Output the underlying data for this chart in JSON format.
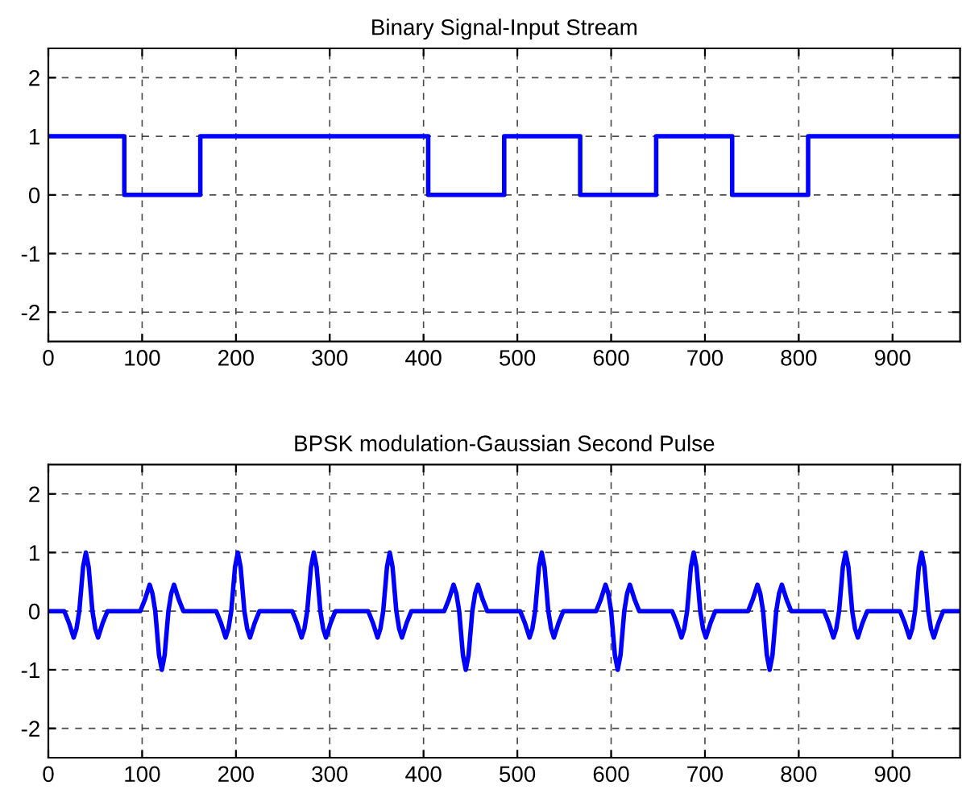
{
  "chart_data": [
    {
      "type": "step",
      "title": "Binary Signal-Input Stream",
      "x": [
        0,
        81,
        162,
        243,
        324,
        405,
        486,
        567,
        648,
        729,
        810,
        891,
        972
      ],
      "series": [
        {
          "color": "#0000ff",
          "values": [
            1,
            0,
            1,
            1,
            1,
            0,
            1,
            0,
            1,
            0,
            1,
            1,
            1
          ]
        }
      ],
      "xlim": [
        0,
        972
      ],
      "ylim": [
        -2.5,
        2.5
      ],
      "xticks": [
        0,
        100,
        200,
        300,
        400,
        500,
        600,
        700,
        800,
        900
      ],
      "yticks": [
        -2,
        -1,
        0,
        1,
        2
      ],
      "grid": true
    },
    {
      "type": "line",
      "title": "BPSK modulation-Gaussian Second Pulse",
      "x": [
        0,
        17,
        22,
        27,
        30,
        33,
        37,
        40,
        43,
        47,
        50,
        53,
        58,
        63,
        98,
        103,
        108,
        111,
        114,
        118,
        121,
        124,
        128,
        131,
        134,
        139,
        144,
        179,
        184,
        189,
        192,
        195,
        199,
        202,
        205,
        209,
        212,
        215,
        220,
        225,
        260,
        265,
        270,
        273,
        276,
        280,
        283,
        286,
        290,
        293,
        296,
        301,
        306,
        341,
        346,
        351,
        354,
        357,
        361,
        364,
        367,
        371,
        374,
        377,
        382,
        387,
        422,
        427,
        432,
        435,
        438,
        442,
        445,
        448,
        452,
        455,
        458,
        463,
        468,
        503,
        508,
        513,
        516,
        519,
        523,
        526,
        529,
        533,
        536,
        539,
        544,
        549,
        584,
        589,
        594,
        597,
        600,
        604,
        607,
        610,
        614,
        617,
        620,
        625,
        630,
        665,
        670,
        675,
        678,
        681,
        685,
        688,
        691,
        695,
        698,
        701,
        706,
        711,
        746,
        751,
        756,
        759,
        762,
        766,
        769,
        772,
        776,
        779,
        782,
        787,
        792,
        827,
        832,
        837,
        840,
        843,
        847,
        850,
        853,
        857,
        860,
        863,
        868,
        873,
        908,
        913,
        918,
        921,
        924,
        928,
        931,
        934,
        938,
        941,
        944,
        949,
        954,
        972
      ],
      "series": [
        {
          "color": "#0000ff",
          "values": [
            0,
            0,
            -0.2,
            -0.45,
            -0.3,
            0,
            0.75,
            1,
            0.75,
            0,
            -0.3,
            -0.45,
            -0.2,
            0,
            0,
            0.2,
            0.45,
            0.3,
            0,
            -0.75,
            -1,
            -0.75,
            0,
            0.3,
            0.45,
            0.2,
            0,
            0,
            -0.2,
            -0.45,
            -0.3,
            0,
            0.75,
            1,
            0.75,
            0,
            -0.3,
            -0.45,
            -0.2,
            0,
            0,
            -0.2,
            -0.45,
            -0.3,
            0,
            0.75,
            1,
            0.75,
            0,
            -0.3,
            -0.45,
            -0.2,
            0,
            0,
            -0.2,
            -0.45,
            -0.3,
            0,
            0.75,
            1,
            0.75,
            0,
            -0.3,
            -0.45,
            -0.2,
            0,
            0,
            0.2,
            0.45,
            0.3,
            0,
            -0.75,
            -1,
            -0.75,
            0,
            0.3,
            0.45,
            0.2,
            0,
            0,
            -0.2,
            -0.45,
            -0.3,
            0,
            0.75,
            1,
            0.75,
            0,
            -0.3,
            -0.45,
            -0.2,
            0,
            0,
            0.2,
            0.45,
            0.3,
            0,
            -0.75,
            -1,
            -0.75,
            0,
            0.3,
            0.45,
            0.2,
            0,
            0,
            -0.2,
            -0.45,
            -0.3,
            0,
            0.75,
            1,
            0.75,
            0,
            -0.3,
            -0.45,
            -0.2,
            0,
            0,
            0.2,
            0.45,
            0.3,
            0,
            -0.75,
            -1,
            -0.75,
            0,
            0.3,
            0.45,
            0.2,
            0,
            0,
            -0.2,
            -0.45,
            -0.3,
            0,
            0.75,
            1,
            0.75,
            0,
            -0.3,
            -0.45,
            -0.2,
            0,
            0,
            -0.2,
            -0.45,
            -0.3,
            0,
            0.75,
            1,
            0.75,
            0,
            -0.3,
            -0.45,
            -0.2,
            0,
            0
          ]
        }
      ],
      "xlim": [
        0,
        972
      ],
      "ylim": [
        -2.5,
        2.5
      ],
      "xticks": [
        0,
        100,
        200,
        300,
        400,
        500,
        600,
        700,
        800,
        900
      ],
      "yticks": [
        -2,
        -1,
        0,
        1,
        2
      ],
      "grid": true
    }
  ]
}
